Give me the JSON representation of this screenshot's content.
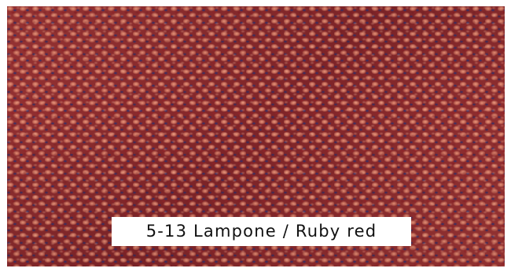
{
  "swatch": {
    "label": "5-13 Lampone / Ruby red"
  },
  "colors": {
    "base": "#8a2a2a",
    "highlight": "#ee9c80",
    "accent_thread": "#2c3070",
    "label_background": "#ffffff",
    "label_text": "#111111"
  }
}
